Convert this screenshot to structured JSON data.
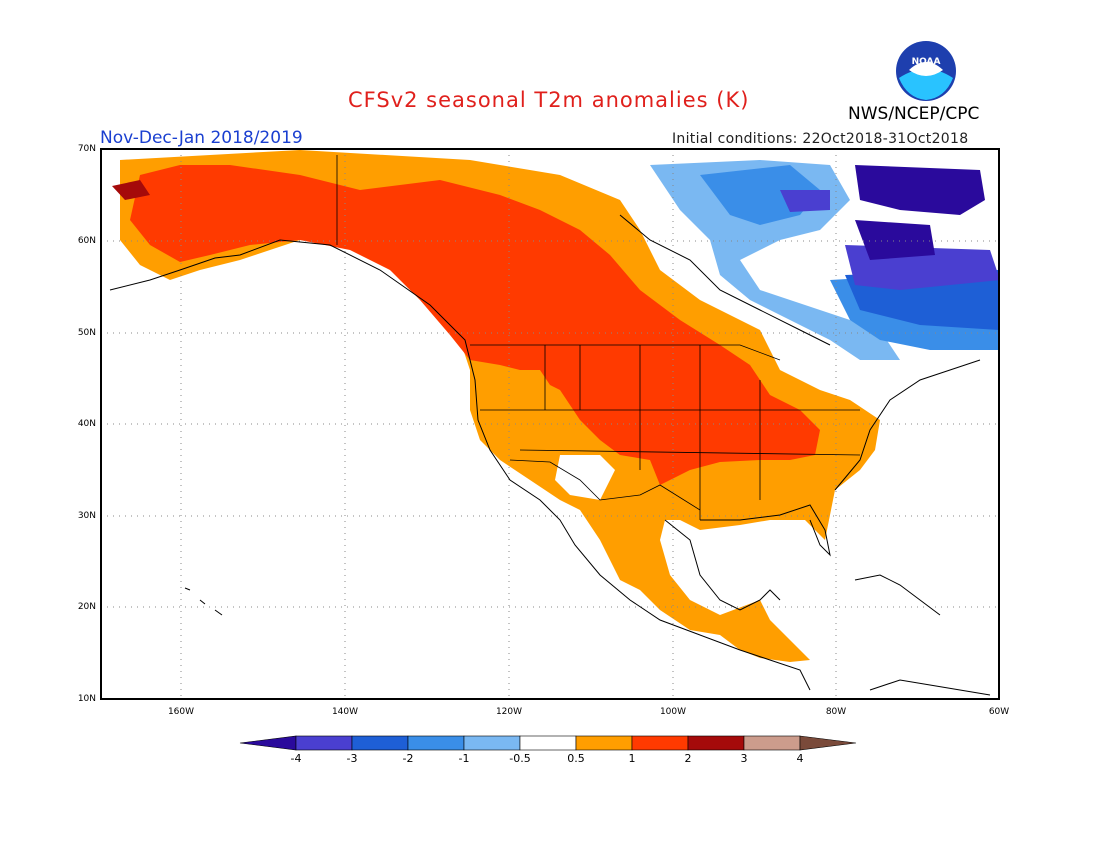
{
  "header": {
    "title": "CFSv2 seasonal T2m anomalies (K)",
    "period": "Nov-Dec-Jan 2018/2019",
    "initial_conditions": "Initial conditions: 22Oct2018-31Oct2018",
    "agency": "NWS/NCEP/CPC",
    "logo_text": "NOAA"
  },
  "map": {
    "region": "North America",
    "lat_range": [
      10,
      70
    ],
    "lon_range": [
      -172,
      -60
    ],
    "lat_ticks": [
      "10N",
      "20N",
      "30N",
      "40N",
      "50N",
      "60N",
      "70N"
    ],
    "lon_ticks": [
      "160W",
      "140W",
      "120W",
      "100W",
      "80W",
      "60W"
    ],
    "grid": "dotted",
    "colors": {
      "border": "#000000",
      "coast": "#000000"
    }
  },
  "colorbar": {
    "labels": [
      "-4",
      "-3",
      "-2",
      "-1",
      "-0.5",
      "0.5",
      "1",
      "2",
      "3",
      "4"
    ],
    "bins": [
      {
        "color": "#2a0a9c"
      },
      {
        "color": "#4a3fd0"
      },
      {
        "color": "#1e5fd6"
      },
      {
        "color": "#3a8ee8"
      },
      {
        "color": "#7ab8f2"
      },
      {
        "color": "#ffffff"
      },
      {
        "color": "#ff9e00"
      },
      {
        "color": "#ff3a00"
      },
      {
        "color": "#a50a0a"
      },
      {
        "color": "#cc9c8c"
      },
      {
        "color": "#7a4a3a"
      }
    ]
  }
}
